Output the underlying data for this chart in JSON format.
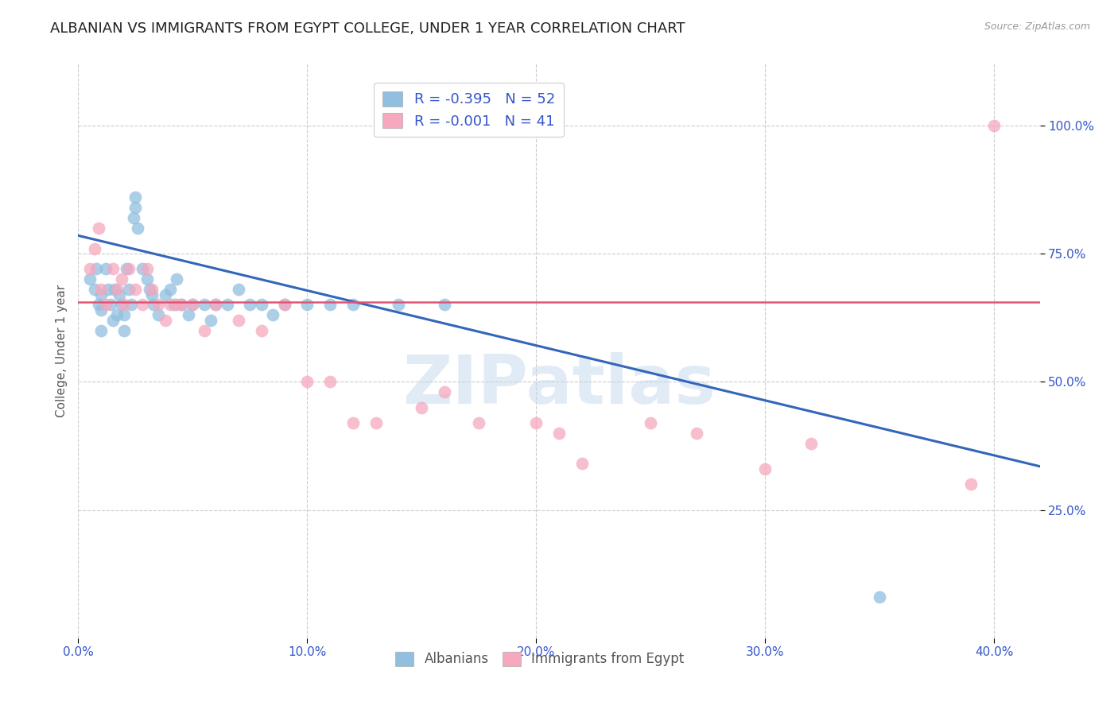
{
  "title": "ALBANIAN VS IMMIGRANTS FROM EGYPT COLLEGE, UNDER 1 YEAR CORRELATION CHART",
  "source": "Source: ZipAtlas.com",
  "ylabel": "College, Under 1 year",
  "xlabel_ticks": [
    "0.0%",
    "10.0%",
    "20.0%",
    "30.0%",
    "40.0%"
  ],
  "xlabel_vals": [
    0.0,
    0.1,
    0.2,
    0.3,
    0.4
  ],
  "right_ytick_labels": [
    "25.0%",
    "50.0%",
    "75.0%",
    "100.0%"
  ],
  "right_ytick_vals": [
    0.25,
    0.5,
    0.75,
    1.0
  ],
  "xlim": [
    0.0,
    0.42
  ],
  "ylim": [
    0.0,
    1.12
  ],
  "blue_R": -0.395,
  "blue_N": 52,
  "pink_R": -0.001,
  "pink_N": 41,
  "blue_color": "#90bfe0",
  "pink_color": "#f5a8be",
  "blue_line_color": "#3366bb",
  "pink_line_color": "#e05575",
  "watermark": "ZIPatlas",
  "blue_scatter_x": [
    0.005,
    0.007,
    0.008,
    0.009,
    0.01,
    0.01,
    0.01,
    0.012,
    0.013,
    0.014,
    0.015,
    0.016,
    0.017,
    0.018,
    0.019,
    0.02,
    0.02,
    0.021,
    0.022,
    0.023,
    0.024,
    0.025,
    0.025,
    0.026,
    0.028,
    0.03,
    0.031,
    0.032,
    0.033,
    0.035,
    0.038,
    0.04,
    0.042,
    0.043,
    0.045,
    0.048,
    0.05,
    0.055,
    0.058,
    0.06,
    0.065,
    0.07,
    0.075,
    0.08,
    0.085,
    0.09,
    0.1,
    0.11,
    0.12,
    0.14,
    0.16,
    0.35
  ],
  "blue_scatter_y": [
    0.7,
    0.68,
    0.72,
    0.65,
    0.67,
    0.64,
    0.6,
    0.72,
    0.68,
    0.65,
    0.62,
    0.68,
    0.63,
    0.67,
    0.65,
    0.63,
    0.6,
    0.72,
    0.68,
    0.65,
    0.82,
    0.84,
    0.86,
    0.8,
    0.72,
    0.7,
    0.68,
    0.67,
    0.65,
    0.63,
    0.67,
    0.68,
    0.65,
    0.7,
    0.65,
    0.63,
    0.65,
    0.65,
    0.62,
    0.65,
    0.65,
    0.68,
    0.65,
    0.65,
    0.63,
    0.65,
    0.65,
    0.65,
    0.65,
    0.65,
    0.65,
    0.08
  ],
  "pink_scatter_x": [
    0.005,
    0.007,
    0.009,
    0.01,
    0.012,
    0.015,
    0.017,
    0.019,
    0.02,
    0.022,
    0.025,
    0.028,
    0.03,
    0.032,
    0.035,
    0.038,
    0.04,
    0.043,
    0.045,
    0.05,
    0.055,
    0.06,
    0.07,
    0.08,
    0.09,
    0.1,
    0.11,
    0.12,
    0.13,
    0.15,
    0.16,
    0.175,
    0.2,
    0.21,
    0.22,
    0.25,
    0.27,
    0.3,
    0.32,
    0.39,
    0.4
  ],
  "pink_scatter_y": [
    0.72,
    0.76,
    0.8,
    0.68,
    0.65,
    0.72,
    0.68,
    0.7,
    0.65,
    0.72,
    0.68,
    0.65,
    0.72,
    0.68,
    0.65,
    0.62,
    0.65,
    0.65,
    0.65,
    0.65,
    0.6,
    0.65,
    0.62,
    0.6,
    0.65,
    0.5,
    0.5,
    0.42,
    0.42,
    0.45,
    0.48,
    0.42,
    0.42,
    0.4,
    0.34,
    0.42,
    0.4,
    0.33,
    0.38,
    0.3,
    1.0
  ],
  "blue_trend_x": [
    0.0,
    0.42
  ],
  "blue_trend_y": [
    0.785,
    0.335
  ],
  "pink_trend_x": [
    0.0,
    0.42
  ],
  "pink_trend_y": [
    0.655,
    0.655
  ],
  "grid_vals": [
    0.25,
    0.5,
    0.75,
    1.0
  ],
  "background_color": "#ffffff",
  "grid_color": "#cccccc",
  "title_fontsize": 13,
  "axis_label_fontsize": 11,
  "tick_fontsize": 11,
  "legend_R_color": "#cc2222",
  "legend_N_color": "#3355cc"
}
